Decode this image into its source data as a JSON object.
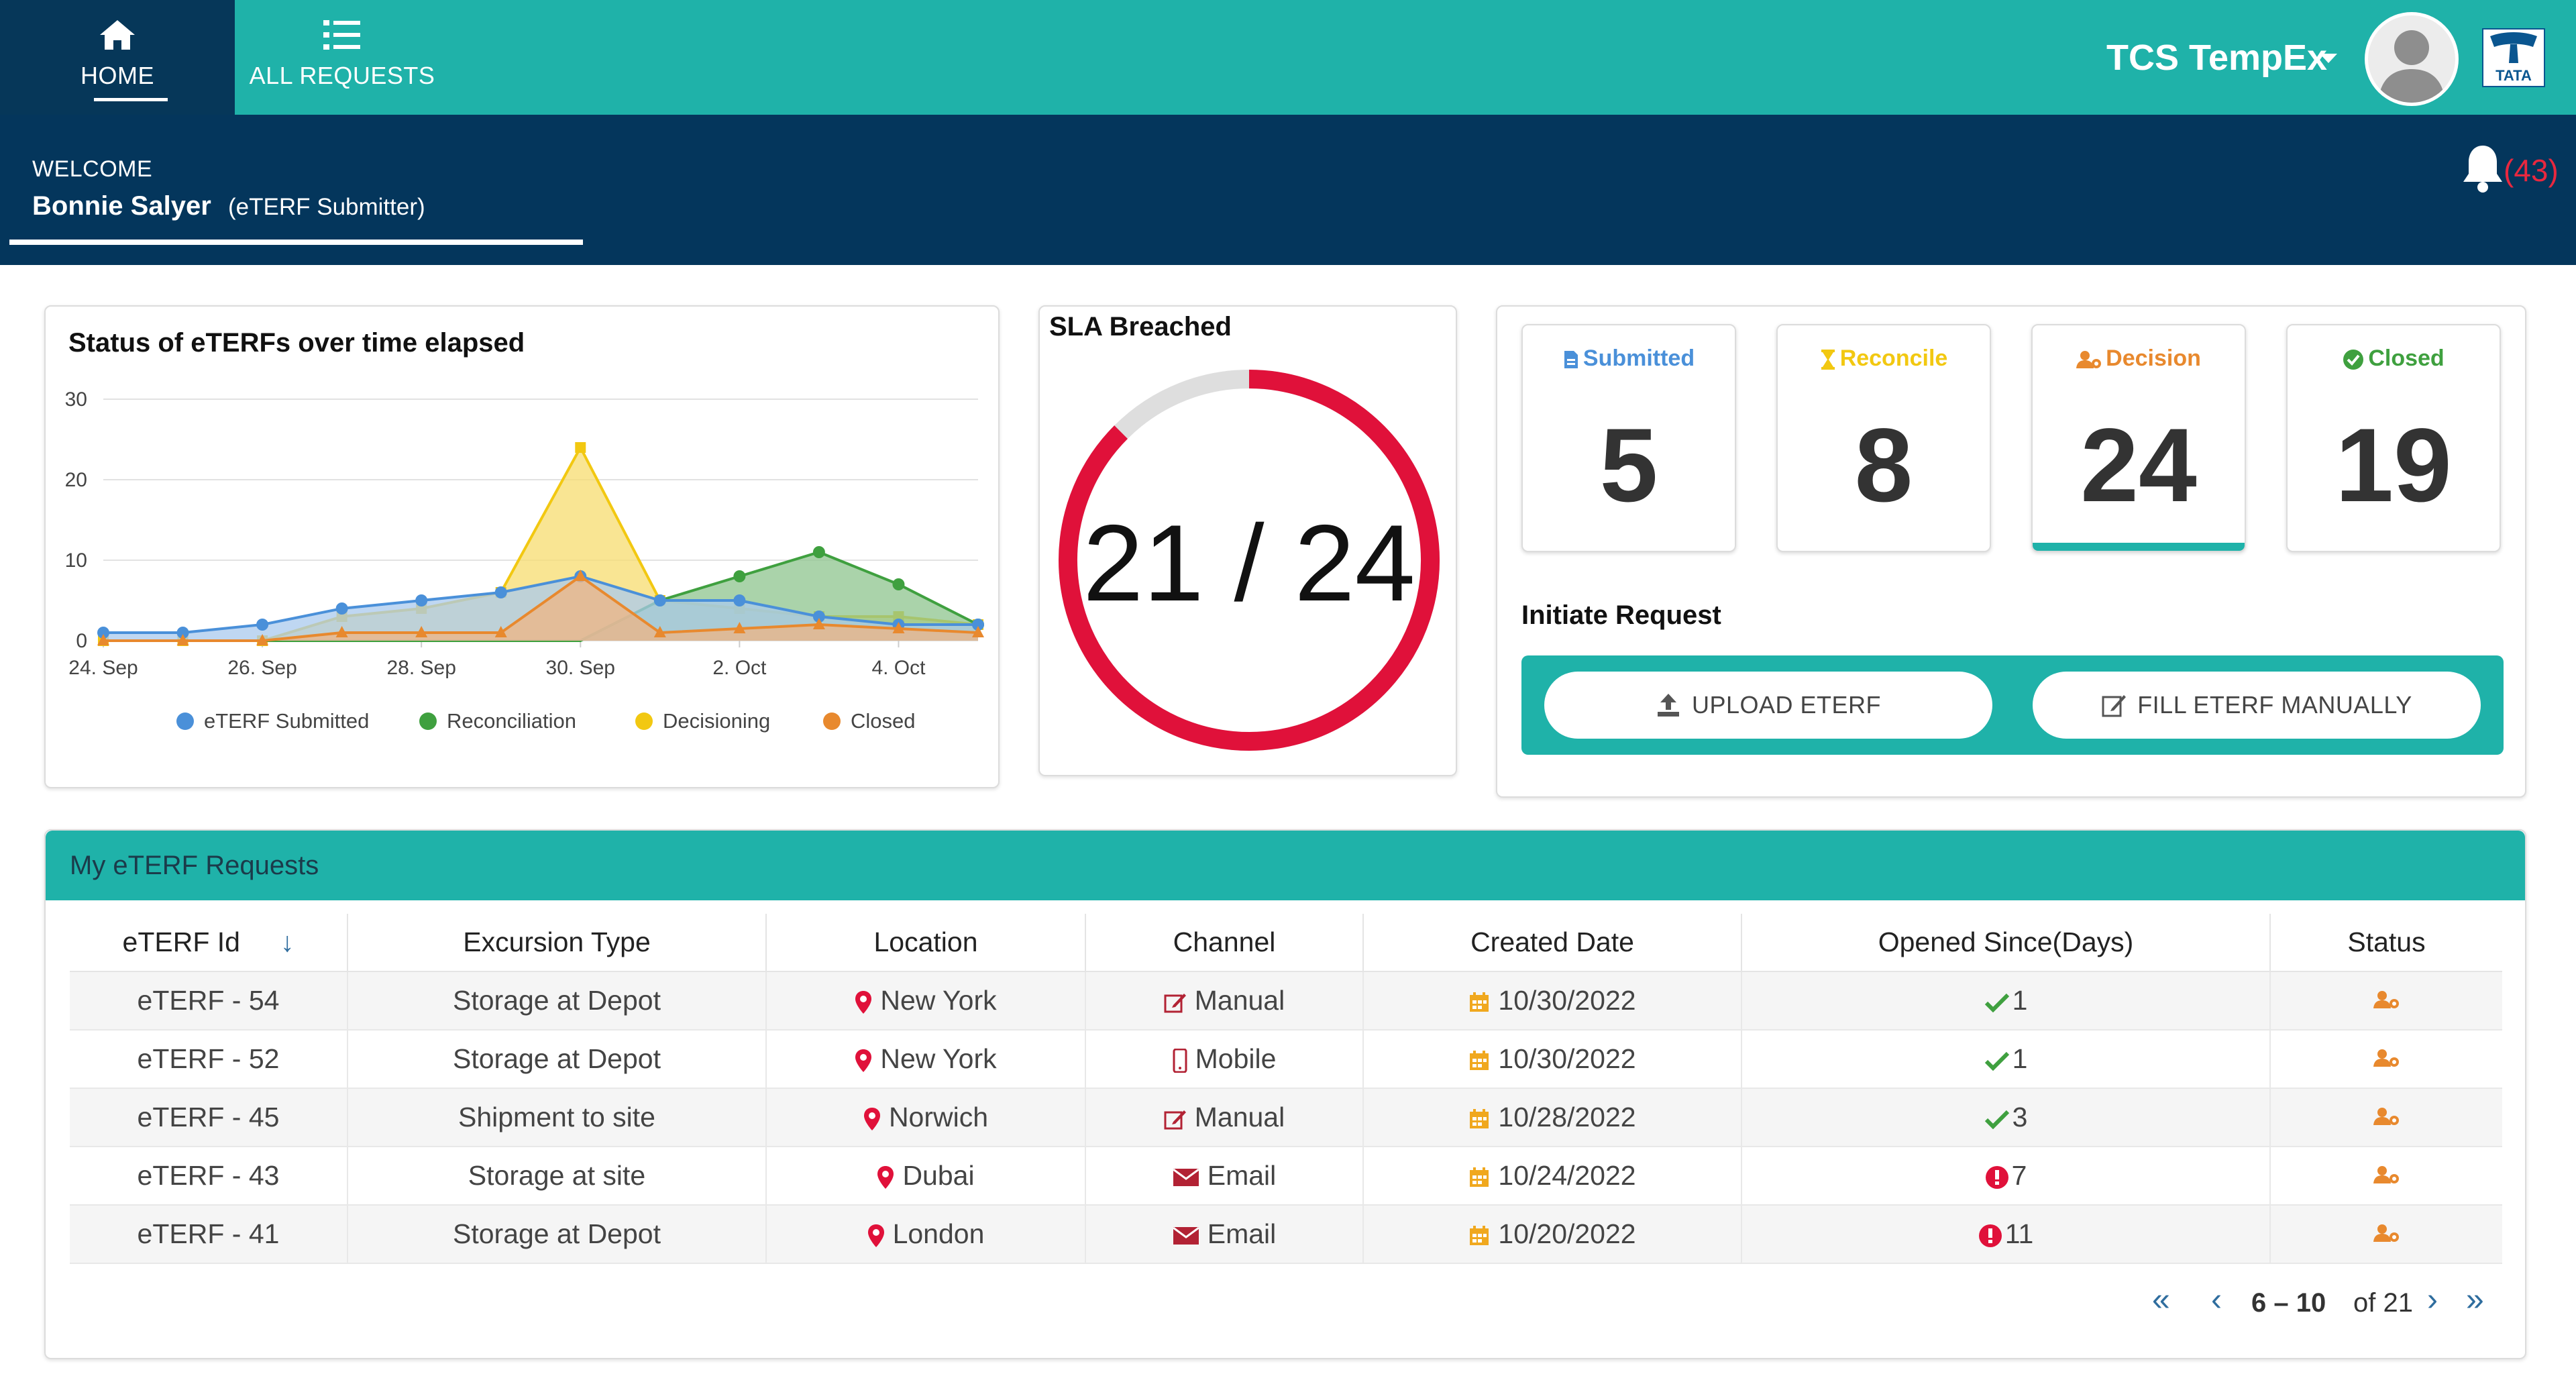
{
  "nav": {
    "home_label": "HOME",
    "all_requests_label": "ALL REQUESTS",
    "brand": "TCS TempEx",
    "logo_text": "TATA"
  },
  "welcome": {
    "label": "WELCOME",
    "name": "Bonnie Salyer",
    "role": "(eTERF Submitter)",
    "notification_count": "(43)"
  },
  "chart_card": {
    "title": "Status of eTERFs over time elapsed"
  },
  "chart_data": {
    "type": "area",
    "title": "Status of eTERFs over time elapsed",
    "x": [
      "24. Sep",
      "25. Sep",
      "26. Sep",
      "27. Sep",
      "28. Sep",
      "29. Sep",
      "30. Sep",
      "1. Oct",
      "2. Oct",
      "3. Oct",
      "4. Oct",
      "5. Oct"
    ],
    "xticks": [
      "24. Sep",
      "26. Sep",
      "28. Sep",
      "30. Sep",
      "2. Oct",
      "4. Oct"
    ],
    "yticks": [
      "0",
      "10",
      "20",
      "30"
    ],
    "ylim": [
      0,
      30
    ],
    "grid": true,
    "legend_position": "bottom",
    "series": [
      {
        "name": "eTERF Submitted",
        "color": "#4a90d9",
        "fill": "#a9c9ee",
        "values": [
          1,
          1,
          2,
          4,
          5,
          6,
          8,
          5,
          5,
          3,
          2,
          2
        ]
      },
      {
        "name": "Reconciliation",
        "color": "#3fa03f",
        "fill": "#8dc48d",
        "values": [
          0,
          0,
          0,
          0,
          0,
          0,
          0,
          5,
          8,
          11,
          7,
          2
        ]
      },
      {
        "name": "Decisioning",
        "color": "#f2c811",
        "fill": "#f7dc6f",
        "values": [
          0,
          0,
          0,
          3,
          4,
          6,
          24,
          5,
          4,
          3,
          3,
          2
        ]
      },
      {
        "name": "Closed",
        "color": "#e8892e",
        "fill": "#efb483",
        "values": [
          0,
          0,
          0,
          1,
          1,
          1,
          8,
          1,
          1.5,
          2,
          1.5,
          1
        ]
      }
    ]
  },
  "sla": {
    "title": "SLA Breached",
    "value_text": "21 / 24",
    "breached": 21,
    "total": 24,
    "ring_color": "#e0113a",
    "track_color": "#dedede"
  },
  "stats": [
    {
      "label": "Submitted",
      "value": "5",
      "color": "#4a90d9",
      "icon": "file-icon"
    },
    {
      "label": "Reconcile",
      "value": "8",
      "color": "#f2c811",
      "icon": "hourglass-icon"
    },
    {
      "label": "Decision",
      "value": "24",
      "color": "#e8892e",
      "icon": "user-cog-icon",
      "selected": true
    },
    {
      "label": "Closed",
      "value": "19",
      "color": "#3fa03f",
      "icon": "check-circle-icon"
    }
  ],
  "initiate": {
    "label": "Initiate Request",
    "upload_label": "UPLOAD ETERF",
    "fill_label": "FILL ETERF MANUALLY"
  },
  "requests": {
    "title": "My eTERF Requests",
    "columns": [
      "eTERF Id",
      "Excursion Type",
      "Location",
      "Channel",
      "Created Date",
      "Opened Since(Days)",
      "Status"
    ],
    "rows": [
      {
        "id": "eTERF - 54",
        "excursion": "Storage at Depot",
        "location": "New York",
        "channel": "Manual",
        "created": "10/30/2022",
        "opened": "1",
        "opened_state": "ok"
      },
      {
        "id": "eTERF - 52",
        "excursion": "Storage at Depot",
        "location": "New York",
        "channel": "Mobile",
        "created": "10/30/2022",
        "opened": "1",
        "opened_state": "ok"
      },
      {
        "id": "eTERF - 45",
        "excursion": "Shipment to site",
        "location": "Norwich",
        "channel": "Manual",
        "created": "10/28/2022",
        "opened": "3",
        "opened_state": "ok"
      },
      {
        "id": "eTERF - 43",
        "excursion": "Storage at site",
        "location": "Dubai",
        "channel": "Email",
        "created": "10/24/2022",
        "opened": "7",
        "opened_state": "alert"
      },
      {
        "id": "eTERF - 41",
        "excursion": "Storage at Depot",
        "location": "London",
        "channel": "Email",
        "created": "10/20/2022",
        "opened": "11",
        "opened_state": "alert"
      }
    ],
    "pager": {
      "range": "6 – 10",
      "of_text": "of 21"
    }
  },
  "colors": {
    "teal": "#1fb2a9",
    "navy": "#04365c",
    "alert_red": "#e0113a",
    "check_green": "#3fa03f",
    "calendar_orange": "#f0a81e"
  }
}
